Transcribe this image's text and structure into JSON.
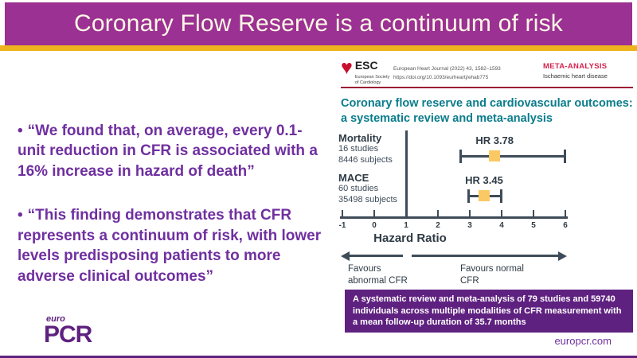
{
  "header": {
    "title": "Coronary Flow Reserve is a continuum of risk"
  },
  "bullets": [
    {
      "marker": "•",
      "text": "“We found that, on average, every 0.1-unit reduction in CFR is associated with a 16% increase in hazard of death”"
    },
    {
      "marker": "•",
      "text": "“This finding demonstrates that CFR represents a continuum of risk, with lower levels predisposing patients to more adverse clinical outcomes”"
    }
  ],
  "journal": {
    "logo": {
      "abbr": "ESC",
      "society_line1": "European Society",
      "society_line2": "of Cardiology"
    },
    "citation_line1": "European Heart Journal (2022) 43, 1582–1593",
    "citation_line2": "https://doi.org/10.1093/eurheartj/ehab775",
    "category": "META-ANALYSIS",
    "category_sub": "Ischaemic heart disease",
    "article_title": "Coronary flow reserve and cardiovascular outcomes: a systematic review and meta-analysis"
  },
  "chart_data": {
    "type": "forest",
    "xlabel": "Hazard Ratio",
    "xlim": [
      -1,
      6
    ],
    "x_ticks": [
      -1,
      0,
      1,
      2,
      3,
      4,
      5,
      6
    ],
    "reference_line": 1,
    "grid": false,
    "legend_position": "none",
    "series": [
      {
        "name": "Mortality",
        "studies": "16 studies",
        "subjects": "8446 subjects",
        "hr_label": "HR 3.78",
        "hr": 3.78,
        "ci_low": 2.7,
        "ci_high": 6.0
      },
      {
        "name": "MACE",
        "studies": "60 studies",
        "subjects": "35498 subjects",
        "hr_label": "HR 3.45",
        "hr": 3.45,
        "ci_low": 2.95,
        "ci_high": 4.0
      }
    ],
    "favours_left_line1": "Favours",
    "favours_left_line2": "abnormal CFR",
    "favours_right_line1": "Favours normal",
    "favours_right_line2": "CFR"
  },
  "summary_box": {
    "text": "A systematic review and meta-analysis of 79 studies and 59740 individuals across multiple modalities of CFR measurement with a mean follow-up duration of 35.7 months"
  },
  "footer": {
    "logo_top": "euro",
    "logo_main": "PCR",
    "website": "europcr.com"
  },
  "colors": {
    "banner_purple": "#9B3192",
    "accent_yellow": "#EDB41D",
    "title_cream": "#FCF7E6",
    "quote_purple": "#7030A0",
    "teal": "#0A7C8C",
    "slate": "#3E4C59",
    "marker_yellow": "#FAC964",
    "esc_red": "#C8102E",
    "category_red": "#D5234F",
    "rule_red": "#9C1B33",
    "deep_purple": "#5F2180"
  }
}
